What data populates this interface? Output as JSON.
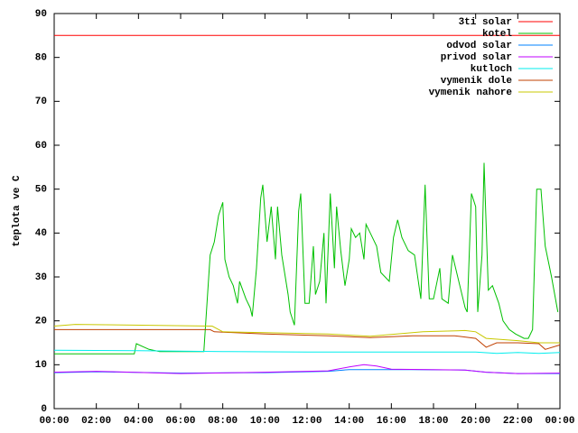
{
  "chart_data": {
    "type": "line",
    "y_label": "teplota ve C",
    "xlim": [
      0,
      24
    ],
    "xticks": [
      {
        "value": 0,
        "label": "00:00"
      },
      {
        "value": 2,
        "label": "02:00"
      },
      {
        "value": 4,
        "label": "04:00"
      },
      {
        "value": 6,
        "label": "06:00"
      },
      {
        "value": 8,
        "label": "08:00"
      },
      {
        "value": 10,
        "label": "10:00"
      },
      {
        "value": 12,
        "label": "12:00"
      },
      {
        "value": 14,
        "label": "14:00"
      },
      {
        "value": 16,
        "label": "16:00"
      },
      {
        "value": 18,
        "label": "18:00"
      },
      {
        "value": 20,
        "label": "20:00"
      },
      {
        "value": 22,
        "label": "22:00"
      },
      {
        "value": 24,
        "label": "00:00"
      }
    ],
    "ylim": [
      0,
      90
    ],
    "yticks": [
      0,
      10,
      20,
      30,
      40,
      50,
      60,
      70,
      80,
      90
    ],
    "grid": false,
    "legend": "top-right",
    "series": [
      {
        "name": "3ti solar",
        "color": "#ff0000",
        "x": [
          0,
          24
        ],
        "values": [
          85,
          85
        ]
      },
      {
        "name": "kotel",
        "color": "#00c000",
        "x": [
          0,
          3.8,
          3.9,
          4.5,
          5,
          7.1,
          7.4,
          7.6,
          7.8,
          8.0,
          8.1,
          8.3,
          8.5,
          8.7,
          8.8,
          9.1,
          9.3,
          9.4,
          9.6,
          9.8,
          9.9,
          10.1,
          10.3,
          10.5,
          10.6,
          10.8,
          11.1,
          11.2,
          11.4,
          11.6,
          11.7,
          11.9,
          12.1,
          12.3,
          12.4,
          12.6,
          12.8,
          12.9,
          13.1,
          13.3,
          13.4,
          13.6,
          13.8,
          14.0,
          14.1,
          14.3,
          14.5,
          14.7,
          14.8,
          15.0,
          15.3,
          15.5,
          15.9,
          16.1,
          16.3,
          16.5,
          16.8,
          17.1,
          17.4,
          17.6,
          17.8,
          18.0,
          18.3,
          18.4,
          18.7,
          18.9,
          19.2,
          19.5,
          19.6,
          19.8,
          20.0,
          20.1,
          20.3,
          20.4,
          20.6,
          20.8,
          21.1,
          21.3,
          21.6,
          21.9,
          22.3,
          22.5,
          22.7,
          22.9,
          23.1,
          23.3,
          23.6,
          23.9
        ],
        "values": [
          12.5,
          12.5,
          14.8,
          13.5,
          13,
          13,
          35,
          38,
          44,
          47,
          34,
          30,
          28,
          24,
          29,
          25,
          23,
          21,
          32,
          48,
          51,
          38,
          46,
          34,
          46,
          35,
          26,
          22,
          19,
          45,
          49,
          24,
          24,
          37,
          26,
          29,
          40,
          24,
          49,
          32,
          46,
          36,
          28,
          34,
          41,
          39,
          40,
          34,
          42,
          40,
          37,
          31,
          29,
          39,
          43,
          39,
          36,
          35,
          25,
          51,
          25,
          25,
          32,
          25,
          24,
          35,
          29,
          23,
          22,
          49,
          46,
          22,
          35,
          56,
          27,
          28,
          24,
          20,
          18,
          17,
          16,
          16,
          18,
          50,
          50,
          37,
          30,
          22
        ]
      },
      {
        "name": "odvod solar",
        "color": "#0080ff",
        "x": [
          0,
          2,
          6,
          10,
          13,
          14,
          17,
          19.5,
          20.5,
          22,
          24
        ],
        "values": [
          8.2,
          8.4,
          8.1,
          8.2,
          8.5,
          8.9,
          8.9,
          8.8,
          8.3,
          8,
          8
        ]
      },
      {
        "name": "privod solar",
        "color": "#c000ff",
        "x": [
          0,
          2,
          6,
          10,
          13,
          14,
          14.7,
          15.3,
          16,
          19.5,
          20.5,
          22,
          24
        ],
        "values": [
          8.3,
          8.5,
          8,
          8.3,
          8.6,
          9.5,
          10,
          9.7,
          9,
          8.8,
          8.3,
          8,
          8.1
        ]
      },
      {
        "name": "kutloch",
        "color": "#00eeee",
        "x": [
          0,
          4,
          8,
          12,
          16,
          20,
          21,
          22,
          23,
          24
        ],
        "values": [
          13.3,
          13.2,
          13,
          12.9,
          12.9,
          12.9,
          12.6,
          12.8,
          12.6,
          12.8
        ]
      },
      {
        "name": "vymenik dole",
        "color": "#c04000",
        "x": [
          0,
          7.4,
          7.6,
          10,
          13,
          15,
          17,
          19,
          20,
          20.5,
          21,
          22,
          23,
          23.3,
          24
        ],
        "values": [
          18,
          18,
          17.5,
          17,
          16.6,
          16.2,
          16.6,
          16.6,
          16,
          14,
          15,
          15,
          14.8,
          13.5,
          14.5
        ]
      },
      {
        "name": "vymenik nahore",
        "color": "#c8c800",
        "x": [
          0,
          1,
          7.5,
          8,
          10,
          13,
          15,
          17.5,
          19.5,
          20,
          20.5,
          22,
          23,
          24
        ],
        "values": [
          18.8,
          19.2,
          18.8,
          17.5,
          17.3,
          17,
          16.5,
          17.5,
          17.8,
          17.5,
          16,
          15.5,
          15,
          15
        ]
      }
    ]
  }
}
